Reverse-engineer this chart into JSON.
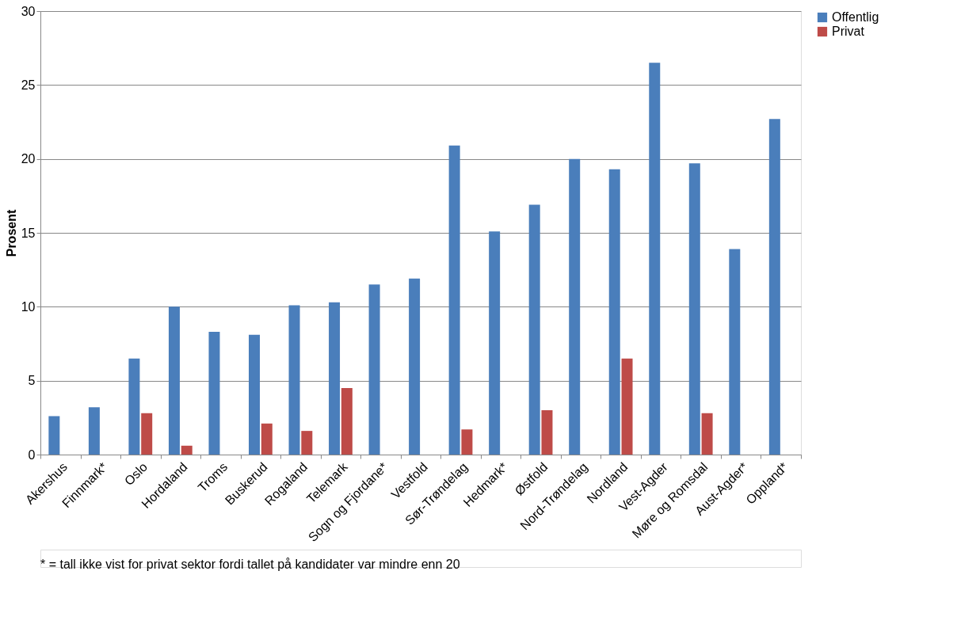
{
  "chart_data": {
    "type": "bar",
    "ylabel": "Prosent",
    "categories": [
      "Akershus",
      "Finnmark*",
      "Oslo",
      "Hordaland",
      "Troms",
      "Buskerud",
      "Rogaland",
      "Telemark",
      "Sogn og Fjordane*",
      "Vestfold",
      "Sør-Trøndelag",
      "Hedmark*",
      "Østfold",
      "Nord-Trøndelag",
      "Nordland",
      "Vest-Agder",
      "Møre og Romsdal",
      "Aust-Agder*",
      "Oppland*"
    ],
    "series": [
      {
        "name": "Offentlig",
        "color": "#4a7ebb",
        "values": [
          2.6,
          3.2,
          6.5,
          10.0,
          8.3,
          8.1,
          10.1,
          10.3,
          11.5,
          11.9,
          20.9,
          15.1,
          16.9,
          20.0,
          19.3,
          26.5,
          19.7,
          13.9,
          22.7
        ]
      },
      {
        "name": "Privat",
        "color": "#be4b48",
        "values": [
          null,
          null,
          2.8,
          0.6,
          null,
          2.1,
          1.6,
          4.5,
          null,
          null,
          1.7,
          null,
          3.0,
          null,
          6.5,
          null,
          2.8,
          null,
          null
        ]
      }
    ],
    "ylim": [
      0,
      30
    ],
    "yticks": [
      0,
      5,
      10,
      15,
      20,
      25,
      30
    ],
    "grid": "y",
    "legend": "right",
    "annotations": [
      "* = tall ikke vist for privat sektor fordi tallet på kandidater var mindre enn 20"
    ]
  }
}
